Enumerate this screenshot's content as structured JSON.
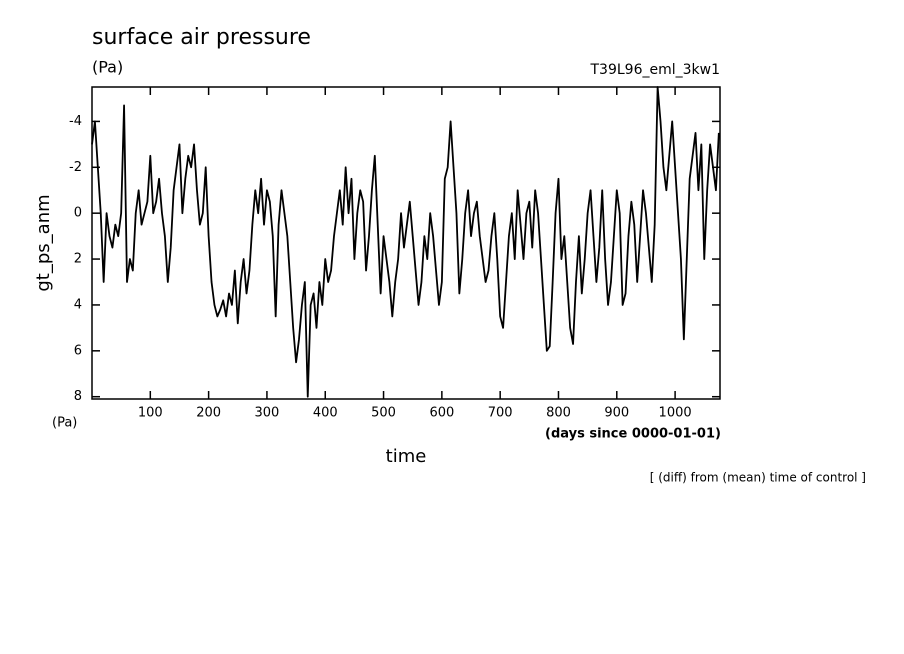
{
  "chart_data": {
    "type": "line",
    "title": "surface air pressure",
    "subtitle": "(Pa)",
    "run_label": "T39L96_eml_3kw1",
    "y_label": "gt_ps_anm",
    "y_unit": "(Pa)",
    "x_label": "time",
    "x_unit": "(days since 0000-01-01)",
    "note": "[ (diff) from (mean) time of control ]",
    "color": "#000000",
    "xlim": [
      0,
      1077
    ],
    "xticks": [
      100,
      200,
      300,
      400,
      500,
      600,
      700,
      800,
      900,
      1000
    ],
    "ylim": [
      8.1,
      -5.5
    ],
    "yticks": [
      -4,
      -2,
      0,
      2,
      4,
      6,
      8
    ],
    "x": [
      0,
      5,
      10,
      15,
      20,
      25,
      30,
      35,
      40,
      45,
      50,
      55,
      60,
      65,
      70,
      75,
      80,
      85,
      90,
      95,
      100,
      105,
      110,
      115,
      120,
      125,
      130,
      135,
      140,
      145,
      150,
      155,
      160,
      165,
      170,
      175,
      180,
      185,
      190,
      195,
      200,
      205,
      210,
      215,
      220,
      225,
      230,
      235,
      240,
      245,
      250,
      255,
      260,
      265,
      270,
      275,
      280,
      285,
      290,
      295,
      300,
      305,
      310,
      315,
      320,
      325,
      330,
      335,
      340,
      345,
      350,
      355,
      360,
      365,
      370,
      375,
      380,
      385,
      390,
      395,
      400,
      405,
      410,
      415,
      420,
      425,
      430,
      435,
      440,
      445,
      450,
      455,
      460,
      465,
      470,
      475,
      480,
      485,
      490,
      495,
      500,
      505,
      510,
      515,
      520,
      525,
      530,
      535,
      540,
      545,
      550,
      555,
      560,
      565,
      570,
      575,
      580,
      585,
      590,
      595,
      600,
      605,
      610,
      615,
      620,
      625,
      630,
      635,
      640,
      645,
      650,
      655,
      660,
      665,
      670,
      675,
      680,
      685,
      690,
      695,
      700,
      705,
      710,
      715,
      720,
      725,
      730,
      735,
      740,
      745,
      750,
      755,
      760,
      765,
      770,
      775,
      780,
      785,
      790,
      795,
      800,
      805,
      810,
      815,
      820,
      825,
      830,
      835,
      840,
      845,
      850,
      855,
      860,
      865,
      870,
      875,
      880,
      885,
      890,
      895,
      900,
      905,
      910,
      915,
      920,
      925,
      930,
      935,
      940,
      945,
      950,
      955,
      960,
      965,
      970,
      975,
      980,
      985,
      990,
      995,
      1000,
      1005,
      1010,
      1015,
      1020,
      1025,
      1030,
      1035,
      1040,
      1045,
      1050,
      1055,
      1060,
      1065,
      1070,
      1075
    ],
    "values": [
      -3,
      -4,
      -2,
      0,
      3,
      0,
      1,
      1.5,
      0.5,
      1,
      0,
      -4.7,
      3,
      2,
      2.5,
      0,
      -1,
      0.5,
      0,
      -0.5,
      -2.5,
      0,
      -0.5,
      -1.5,
      0,
      1,
      3,
      1.5,
      -1,
      -2,
      -3,
      0,
      -1.5,
      -2.5,
      -2,
      -3,
      -1,
      0.5,
      0,
      -2,
      1,
      3,
      4,
      4.5,
      4.2,
      3.8,
      4.5,
      3.5,
      4,
      2.5,
      4.8,
      3,
      2,
      3.5,
      2.5,
      0.5,
      -1,
      0,
      -1.5,
      0.5,
      -1,
      -0.5,
      1,
      4.5,
      0.5,
      -1,
      0,
      1,
      3,
      5,
      6.5,
      5.5,
      4,
      3,
      8,
      4,
      3.5,
      5,
      3,
      4,
      2,
      3,
      2.5,
      1,
      0,
      -1,
      0.5,
      -2,
      0,
      -1.5,
      2,
      0,
      -1,
      -0.5,
      2.5,
      1,
      -1,
      -2.5,
      0.5,
      3.5,
      1,
      2,
      3,
      4.5,
      3,
      2,
      0,
      1.5,
      0.5,
      -0.5,
      1,
      2.5,
      4,
      3,
      1,
      2,
      0,
      1,
      2.5,
      4,
      3,
      -1.5,
      -2,
      -4,
      -2,
      0,
      3.5,
      2,
      0,
      -1,
      1,
      0,
      -0.5,
      1,
      2,
      3,
      2.5,
      1,
      0,
      2,
      4.5,
      5,
      3,
      1,
      0,
      2,
      -1,
      0.5,
      2,
      0,
      -0.5,
      1.5,
      -1,
      0,
      2,
      4,
      6,
      5.8,
      3,
      0,
      -1.5,
      2,
      1,
      3,
      5,
      5.7,
      3,
      1,
      3.5,
      2,
      0,
      -1,
      1,
      3,
      1.5,
      -1,
      2,
      4,
      3,
      1,
      -1,
      0,
      4,
      3.5,
      1,
      -0.5,
      0.5,
      3,
      1,
      -1,
      0,
      1.5,
      3,
      0.5,
      -5.5,
      -4,
      -2,
      -1,
      -2.5,
      -4,
      -2,
      0,
      2,
      5.5,
      2,
      -1.5,
      -2.5,
      -3.5,
      -1,
      -3,
      2,
      -1,
      -3,
      -2,
      -1,
      -3.5
    ]
  }
}
